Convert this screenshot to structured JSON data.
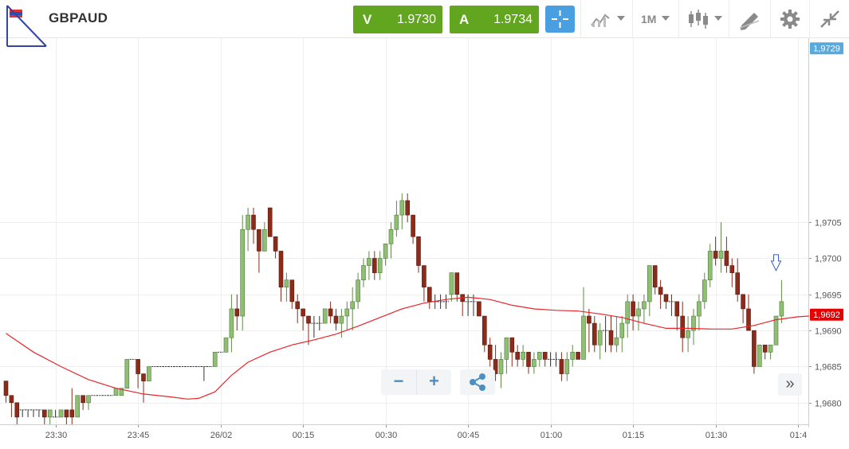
{
  "header": {
    "symbol": "GBPAUD",
    "sell": {
      "label": "V",
      "price": "1.9730"
    },
    "buy": {
      "label": "A",
      "price": "1.9734"
    },
    "timeframe": "1M",
    "icons": [
      "flag-gb-au-icon",
      "crosshair-icon",
      "chart-type-icon",
      "candlestick-icon",
      "drawing-tool-icon",
      "gear-icon",
      "collapse-icon"
    ]
  },
  "controls": {
    "zoom_out": "−",
    "zoom_in": "+",
    "share_icon": "share-icon",
    "scroll_end": "»"
  },
  "colors": {
    "bull": "#8fbf73",
    "bear": "#8c2b1a",
    "ma": "#e8262a",
    "ask_badge": "#5aa9dc",
    "bid_badge": "#e60000",
    "grid": "#eeeeee",
    "accent_green": "#62a51f",
    "accent_blue": "#4a9fe0"
  },
  "chart_data": {
    "type": "candlestick",
    "y_axis": {
      "range": [
        1.9677,
        1.97305
      ],
      "ticks": [
        {
          "value": 1.968,
          "label": "1,9680"
        },
        {
          "value": 1.9685,
          "label": "1,9685"
        },
        {
          "value": 1.969,
          "label": "1,9690"
        },
        {
          "value": 1.9695,
          "label": "1,9695"
        },
        {
          "value": 1.97,
          "label": "1,9700"
        },
        {
          "value": 1.9705,
          "label": "1,9705"
        }
      ]
    },
    "x_axis": {
      "ticks": [
        {
          "index": 9,
          "label": "23:30"
        },
        {
          "index": 24,
          "label": "23:45"
        },
        {
          "index": 39,
          "label": "26/02"
        },
        {
          "index": 54,
          "label": "00:15"
        },
        {
          "index": 69,
          "label": "00:30"
        },
        {
          "index": 84,
          "label": "00:45"
        },
        {
          "index": 99,
          "label": "01:00"
        },
        {
          "index": 114,
          "label": "01:15"
        },
        {
          "index": 129,
          "label": "01:30"
        },
        {
          "index": 144,
          "label": "01:4"
        }
      ]
    },
    "price_badges": [
      {
        "label": "1,9729",
        "value": 1.97291,
        "kind": "ask"
      },
      {
        "label": "1,9692",
        "value": 1.96922,
        "kind": "bid"
      }
    ],
    "candles": [
      [
        1.9683,
        1.9683,
        1.968,
        1.9681
      ],
      [
        1.9681,
        1.9681,
        1.9678,
        1.968
      ],
      [
        1.968,
        1.968,
        1.9677,
        1.9678
      ],
      [
        1.9679,
        1.9679,
        1.9678,
        1.9679
      ],
      [
        1.9679,
        1.9679,
        1.9678,
        1.9679
      ],
      [
        1.9679,
        1.9679,
        1.9678,
        1.9679
      ],
      [
        1.9679,
        1.9679,
        1.9678,
        1.9679
      ],
      [
        1.9679,
        1.9679,
        1.9677,
        1.9678
      ],
      [
        1.9678,
        1.9679,
        1.9677,
        1.9679
      ],
      [
        1.9678,
        1.9679,
        1.9678,
        1.9678
      ],
      [
        1.9678,
        1.9679,
        1.9678,
        1.9679
      ],
      [
        1.9679,
        1.9679,
        1.9677,
        1.9678
      ],
      [
        1.9679,
        1.9682,
        1.9677,
        1.9678
      ],
      [
        1.9678,
        1.9681,
        1.9678,
        1.9681
      ],
      [
        1.9681,
        1.9681,
        1.9679,
        1.968
      ],
      [
        1.968,
        1.9681,
        1.9679,
        1.9681
      ],
      [
        1.9681,
        1.9681,
        1.9681,
        1.9681
      ],
      [
        1.9681,
        1.9681,
        1.9681,
        1.9681
      ],
      [
        1.9681,
        1.9681,
        1.9681,
        1.9681
      ],
      [
        1.9681,
        1.9681,
        1.9681,
        1.9681
      ],
      [
        1.9681,
        1.9682,
        1.9681,
        1.9682
      ],
      [
        1.9681,
        1.9682,
        1.9681,
        1.9682
      ],
      [
        1.9682,
        1.9686,
        1.9682,
        1.9686
      ],
      [
        1.9686,
        1.9686,
        1.9686,
        1.9686
      ],
      [
        1.9686,
        1.9686,
        1.9682,
        1.9684
      ],
      [
        1.9684,
        1.9684,
        1.968,
        1.9683
      ],
      [
        1.9683,
        1.9685,
        1.9683,
        1.9685
      ],
      [
        1.9685,
        1.9685,
        1.9685,
        1.9685
      ],
      [
        1.9685,
        1.9685,
        1.9685,
        1.9685
      ],
      [
        1.9685,
        1.9685,
        1.9685,
        1.9685
      ],
      [
        1.9685,
        1.9685,
        1.9685,
        1.9685
      ],
      [
        1.9685,
        1.9685,
        1.9685,
        1.9685
      ],
      [
        1.9685,
        1.9685,
        1.9685,
        1.9685
      ],
      [
        1.9685,
        1.9685,
        1.9685,
        1.9685
      ],
      [
        1.9685,
        1.9685,
        1.9685,
        1.9685
      ],
      [
        1.9685,
        1.9685,
        1.9685,
        1.9685
      ],
      [
        1.9685,
        1.9685,
        1.9683,
        1.9685
      ],
      [
        1.9685,
        1.9685,
        1.9685,
        1.9685
      ],
      [
        1.9685,
        1.9687,
        1.9685,
        1.9687
      ],
      [
        1.9687,
        1.9687,
        1.9687,
        1.9687
      ],
      [
        1.9687,
        1.9689,
        1.9687,
        1.9689
      ],
      [
        1.9689,
        1.9695,
        1.9687,
        1.9693
      ],
      [
        1.9693,
        1.9695,
        1.969,
        1.9692
      ],
      [
        1.9692,
        1.9706,
        1.969,
        1.9704
      ],
      [
        1.9704,
        1.9707,
        1.9701,
        1.9706
      ],
      [
        1.9706,
        1.9707,
        1.9702,
        1.9704
      ],
      [
        1.9704,
        1.9704,
        1.9698,
        1.9701
      ],
      [
        1.9701,
        1.9705,
        1.9701,
        1.9704
      ],
      [
        1.9707,
        1.9707,
        1.9703,
        1.9703
      ],
      [
        1.9703,
        1.9703,
        1.97,
        1.9701
      ],
      [
        1.9701,
        1.9701,
        1.9694,
        1.9696
      ],
      [
        1.9696,
        1.9698,
        1.9694,
        1.9697
      ],
      [
        1.9697,
        1.9697,
        1.9693,
        1.9694
      ],
      [
        1.9694,
        1.9695,
        1.9691,
        1.9693
      ],
      [
        1.9693,
        1.9693,
        1.969,
        1.9692
      ],
      [
        1.9692,
        1.9692,
        1.9688,
        1.9691
      ],
      [
        1.9691,
        1.9692,
        1.9689,
        1.9691
      ],
      [
        1.9691,
        1.9692,
        1.969,
        1.9691
      ],
      [
        1.9691,
        1.9693,
        1.9691,
        1.9693
      ],
      [
        1.9693,
        1.9694,
        1.9691,
        1.9692
      ],
      [
        1.9692,
        1.9693,
        1.969,
        1.9691
      ],
      [
        1.9691,
        1.9693,
        1.9689,
        1.9692
      ],
      [
        1.9692,
        1.9694,
        1.969,
        1.9693
      ],
      [
        1.9693,
        1.9696,
        1.969,
        1.9694
      ],
      [
        1.9694,
        1.9698,
        1.9693,
        1.9697
      ],
      [
        1.9697,
        1.97,
        1.9696,
        1.9699
      ],
      [
        1.9699,
        1.9701,
        1.9697,
        1.97
      ],
      [
        1.97,
        1.9701,
        1.9697,
        1.9698
      ],
      [
        1.9698,
        1.9701,
        1.9697,
        1.97
      ],
      [
        1.97,
        1.9702,
        1.9699,
        1.9702
      ],
      [
        1.9702,
        1.9705,
        1.97,
        1.9704
      ],
      [
        1.9704,
        1.9708,
        1.9703,
        1.9706
      ],
      [
        1.9706,
        1.9709,
        1.9704,
        1.9708
      ],
      [
        1.9708,
        1.9709,
        1.9705,
        1.9706
      ],
      [
        1.9706,
        1.9706,
        1.9702,
        1.9703
      ],
      [
        1.9703,
        1.9703,
        1.9698,
        1.9699
      ],
      [
        1.9699,
        1.9699,
        1.9694,
        1.9696
      ],
      [
        1.9696,
        1.9696,
        1.9693,
        1.9694
      ],
      [
        1.9694,
        1.9695,
        1.9693,
        1.9694
      ],
      [
        1.9694,
        1.9695,
        1.9693,
        1.9694
      ],
      [
        1.9694,
        1.9695,
        1.9693,
        1.9694
      ],
      [
        1.9695,
        1.9698,
        1.9694,
        1.9698
      ],
      [
        1.9698,
        1.9698,
        1.9694,
        1.9695
      ],
      [
        1.9695,
        1.9695,
        1.9692,
        1.9694
      ],
      [
        1.9694,
        1.9695,
        1.9692,
        1.9694
      ],
      [
        1.9694,
        1.9695,
        1.9692,
        1.9694
      ],
      [
        1.9694,
        1.9694,
        1.9692,
        1.9692
      ],
      [
        1.9692,
        1.9692,
        1.9687,
        1.9688
      ],
      [
        1.9688,
        1.9689,
        1.9685,
        1.9686
      ],
      [
        1.9686,
        1.9688,
        1.9683,
        1.9684
      ],
      [
        1.9684,
        1.9687,
        1.9682,
        1.9686
      ],
      [
        1.9686,
        1.9689,
        1.9684,
        1.9689
      ],
      [
        1.9689,
        1.9689,
        1.9685,
        1.9687
      ],
      [
        1.9687,
        1.9688,
        1.9685,
        1.9686
      ],
      [
        1.9686,
        1.9688,
        1.9685,
        1.9687
      ],
      [
        1.9687,
        1.9687,
        1.9684,
        1.9685
      ],
      [
        1.9685,
        1.9687,
        1.9684,
        1.9686
      ],
      [
        1.9686,
        1.9687,
        1.9685,
        1.9687
      ],
      [
        1.9687,
        1.9687,
        1.9685,
        1.9686
      ],
      [
        1.9686,
        1.9687,
        1.9685,
        1.9686
      ],
      [
        1.9686,
        1.9687,
        1.9685,
        1.9686
      ],
      [
        1.9686,
        1.9687,
        1.9683,
        1.9684
      ],
      [
        1.9684,
        1.9687,
        1.9683,
        1.9686
      ],
      [
        1.9686,
        1.9688,
        1.9685,
        1.9687
      ],
      [
        1.9687,
        1.9687,
        1.9686,
        1.9686
      ],
      [
        1.9686,
        1.9696,
        1.9686,
        1.9692
      ],
      [
        1.9692,
        1.9693,
        1.9687,
        1.9691
      ],
      [
        1.9691,
        1.9692,
        1.9687,
        1.9688
      ],
      [
        1.9688,
        1.9691,
        1.9686,
        1.969
      ],
      [
        1.969,
        1.9692,
        1.9687,
        1.969
      ],
      [
        1.969,
        1.9692,
        1.9687,
        1.9688
      ],
      [
        1.9688,
        1.9692,
        1.9687,
        1.9689
      ],
      [
        1.9689,
        1.9692,
        1.9687,
        1.9691
      ],
      [
        1.9691,
        1.9695,
        1.9689,
        1.9694
      ],
      [
        1.9694,
        1.9695,
        1.969,
        1.9692
      ],
      [
        1.9692,
        1.9694,
        1.969,
        1.9693
      ],
      [
        1.9693,
        1.9695,
        1.9691,
        1.9694
      ],
      [
        1.9694,
        1.9699,
        1.9692,
        1.9699
      ],
      [
        1.9699,
        1.9699,
        1.9695,
        1.9696
      ],
      [
        1.9696,
        1.9697,
        1.9693,
        1.9695
      ],
      [
        1.9695,
        1.9695,
        1.9693,
        1.9694
      ],
      [
        1.9694,
        1.9695,
        1.9692,
        1.9694
      ],
      [
        1.9694,
        1.9694,
        1.969,
        1.9692
      ],
      [
        1.9692,
        1.9694,
        1.9687,
        1.9689
      ],
      [
        1.9689,
        1.9692,
        1.9687,
        1.969
      ],
      [
        1.969,
        1.9693,
        1.9688,
        1.9692
      ],
      [
        1.9692,
        1.9695,
        1.969,
        1.9694
      ],
      [
        1.9694,
        1.9698,
        1.9693,
        1.9697
      ],
      [
        1.9697,
        1.9702,
        1.9696,
        1.9701
      ],
      [
        1.9701,
        1.9703,
        1.9699,
        1.97
      ],
      [
        1.97,
        1.9705,
        1.9698,
        1.9701
      ],
      [
        1.9701,
        1.9703,
        1.9698,
        1.9699
      ],
      [
        1.9699,
        1.97,
        1.9696,
        1.9698
      ],
      [
        1.9698,
        1.97,
        1.9694,
        1.9695
      ],
      [
        1.9695,
        1.9695,
        1.9691,
        1.9693
      ],
      [
        1.9693,
        1.9695,
        1.969,
        1.969
      ],
      [
        1.969,
        1.969,
        1.9684,
        1.9685
      ],
      [
        1.9685,
        1.9688,
        1.9685,
        1.9688
      ],
      [
        1.9688,
        1.9688,
        1.9686,
        1.9687
      ],
      [
        1.9687,
        1.9688,
        1.9686,
        1.9688
      ],
      [
        1.9688,
        1.9692,
        1.9688,
        1.9692
      ],
      [
        1.9692,
        1.9697,
        1.9691,
        1.9694
      ]
    ],
    "series": [
      {
        "name": "",
        "type": "line",
        "x": [
          0,
          5,
          10,
          15,
          20,
          25,
          30,
          33,
          35,
          38,
          41,
          44,
          48,
          52,
          56,
          60,
          64,
          68,
          72,
          76,
          80,
          84,
          88,
          92,
          96,
          100,
          104,
          108,
          112,
          116,
          120,
          124,
          128,
          132,
          136,
          140,
          144,
          146
        ],
        "y": [
          1.96896,
          1.9687,
          1.9685,
          1.96832,
          1.9682,
          1.96812,
          1.96808,
          1.96805,
          1.96806,
          1.96815,
          1.96838,
          1.96856,
          1.9687,
          1.9688,
          1.96887,
          1.96895,
          1.96906,
          1.96918,
          1.9693,
          1.96938,
          1.96943,
          1.96946,
          1.96943,
          1.96935,
          1.9693,
          1.96928,
          1.96927,
          1.96923,
          1.96918,
          1.9691,
          1.96903,
          1.96903,
          1.96902,
          1.96902,
          1.96907,
          1.96915,
          1.96919,
          1.9692
        ]
      }
    ],
    "annotations": [
      {
        "type": "sell-arrow",
        "index": 140,
        "value": 1.96993
      }
    ]
  }
}
